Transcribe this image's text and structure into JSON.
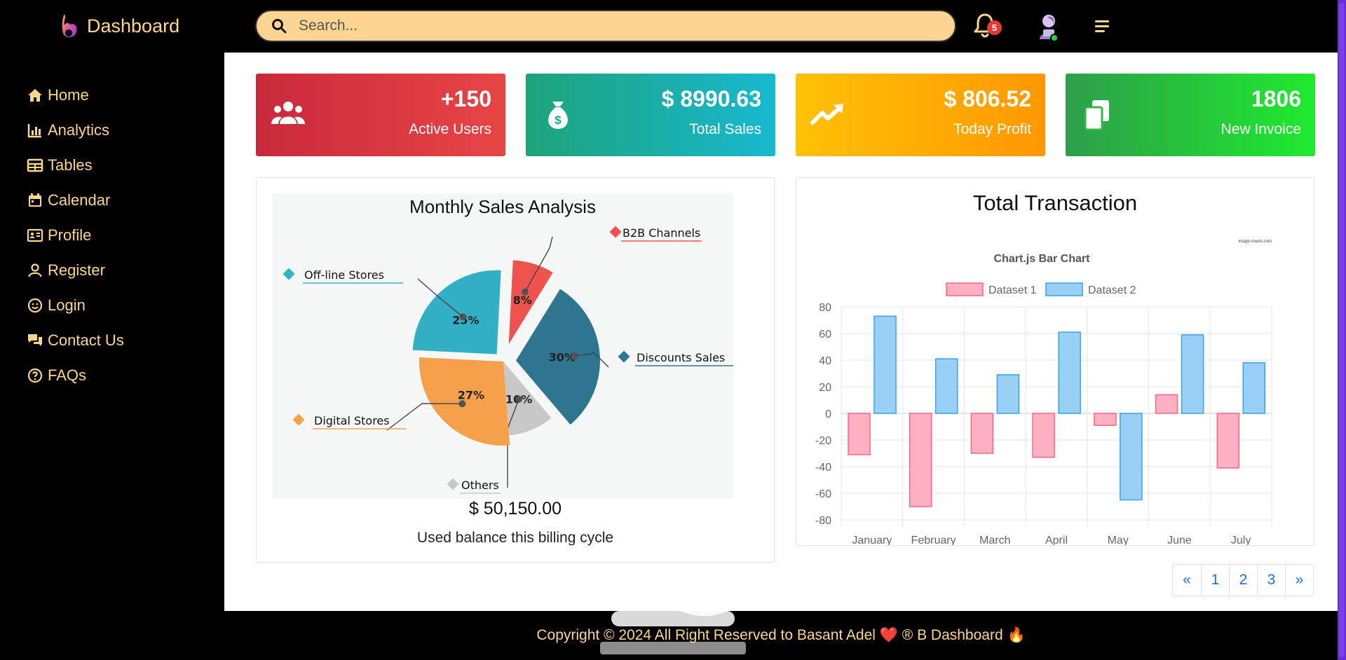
{
  "brand": {
    "name": "Dashboard"
  },
  "search": {
    "placeholder": "Search..."
  },
  "notifications": {
    "count": "5"
  },
  "sidebar": {
    "items": [
      {
        "label": "Home",
        "icon": "home-icon"
      },
      {
        "label": "Analytics",
        "icon": "bar-chart-icon"
      },
      {
        "label": "Tables",
        "icon": "table-icon"
      },
      {
        "label": "Calendar",
        "icon": "calendar-icon"
      },
      {
        "label": "Profile",
        "icon": "id-card-icon"
      },
      {
        "label": "Register",
        "icon": "user-icon"
      },
      {
        "label": "Login",
        "icon": "smile-icon"
      },
      {
        "label": "Contact Us",
        "icon": "chat-icon"
      },
      {
        "label": "FAQs",
        "icon": "question-circle-icon"
      }
    ]
  },
  "stats": [
    {
      "value": "+150",
      "label": "Active Users",
      "icon": "users-icon",
      "color_from": "#c92a3b",
      "color_to": "#e84545"
    },
    {
      "value": "$ 8990.63",
      "label": "Total Sales",
      "icon": "money-bag-icon",
      "color_from": "#1ea37a",
      "color_to": "#18b8d0"
    },
    {
      "value": "$ 806.52",
      "label": "Today Profit",
      "icon": "trend-up-icon",
      "color_from": "#ffc107",
      "color_to": "#ff9800"
    },
    {
      "value": "1806",
      "label": "New Invoice",
      "icon": "copy-icon",
      "color_from": "#2e9e4a",
      "color_to": "#1fea2e"
    }
  ],
  "sales_card": {
    "balance": "$ 50,150.00",
    "caption": "Used balance this billing cycle"
  },
  "transaction_card": {
    "title": "Total Transaction"
  },
  "chart_data": [
    {
      "type": "pie",
      "title": "Monthly Sales Analysis",
      "slices": [
        {
          "label": "B2B Channels",
          "value": 8,
          "color": "#ef5350"
        },
        {
          "label": "Discounts Sales",
          "value": 30,
          "color": "#2e7590"
        },
        {
          "label": "Others",
          "value": 10,
          "color": "#c8c8c8"
        },
        {
          "label": "Digital Stores",
          "value": 27,
          "color": "#f7a04b"
        },
        {
          "label": "Off-line Stores",
          "value": 25,
          "color": "#33b0c6"
        }
      ],
      "value_labels": [
        "8%",
        "30%",
        "10%",
        "27%",
        "25%"
      ]
    },
    {
      "type": "bar",
      "title": "Chart.js Bar Chart",
      "watermark": "image-charts.com",
      "categories": [
        "January",
        "February",
        "March",
        "April",
        "May",
        "June",
        "July"
      ],
      "series": [
        {
          "name": "Dataset 1",
          "values": [
            -31,
            -70,
            -30,
            -33,
            -9,
            14,
            -41
          ],
          "fill": "#ffb1c1",
          "stroke": "#ff6384"
        },
        {
          "name": "Dataset 2",
          "values": [
            73,
            41,
            29,
            61,
            -65,
            59,
            38
          ],
          "fill": "#9ad0f5",
          "stroke": "#36a2eb"
        }
      ],
      "ylim": [
        -80,
        80
      ],
      "yticks": [
        "80",
        "60",
        "40",
        "20",
        "0",
        "-20",
        "-40",
        "-60",
        "-80"
      ],
      "legend": "top",
      "grid": true
    }
  ],
  "pagination": [
    "«",
    "1",
    "2",
    "3",
    "»"
  ],
  "footer": {
    "text": "Copyright © 2024 All Right Reserved to Basant Adel ❤️ ® B Dashboard 🔥"
  }
}
